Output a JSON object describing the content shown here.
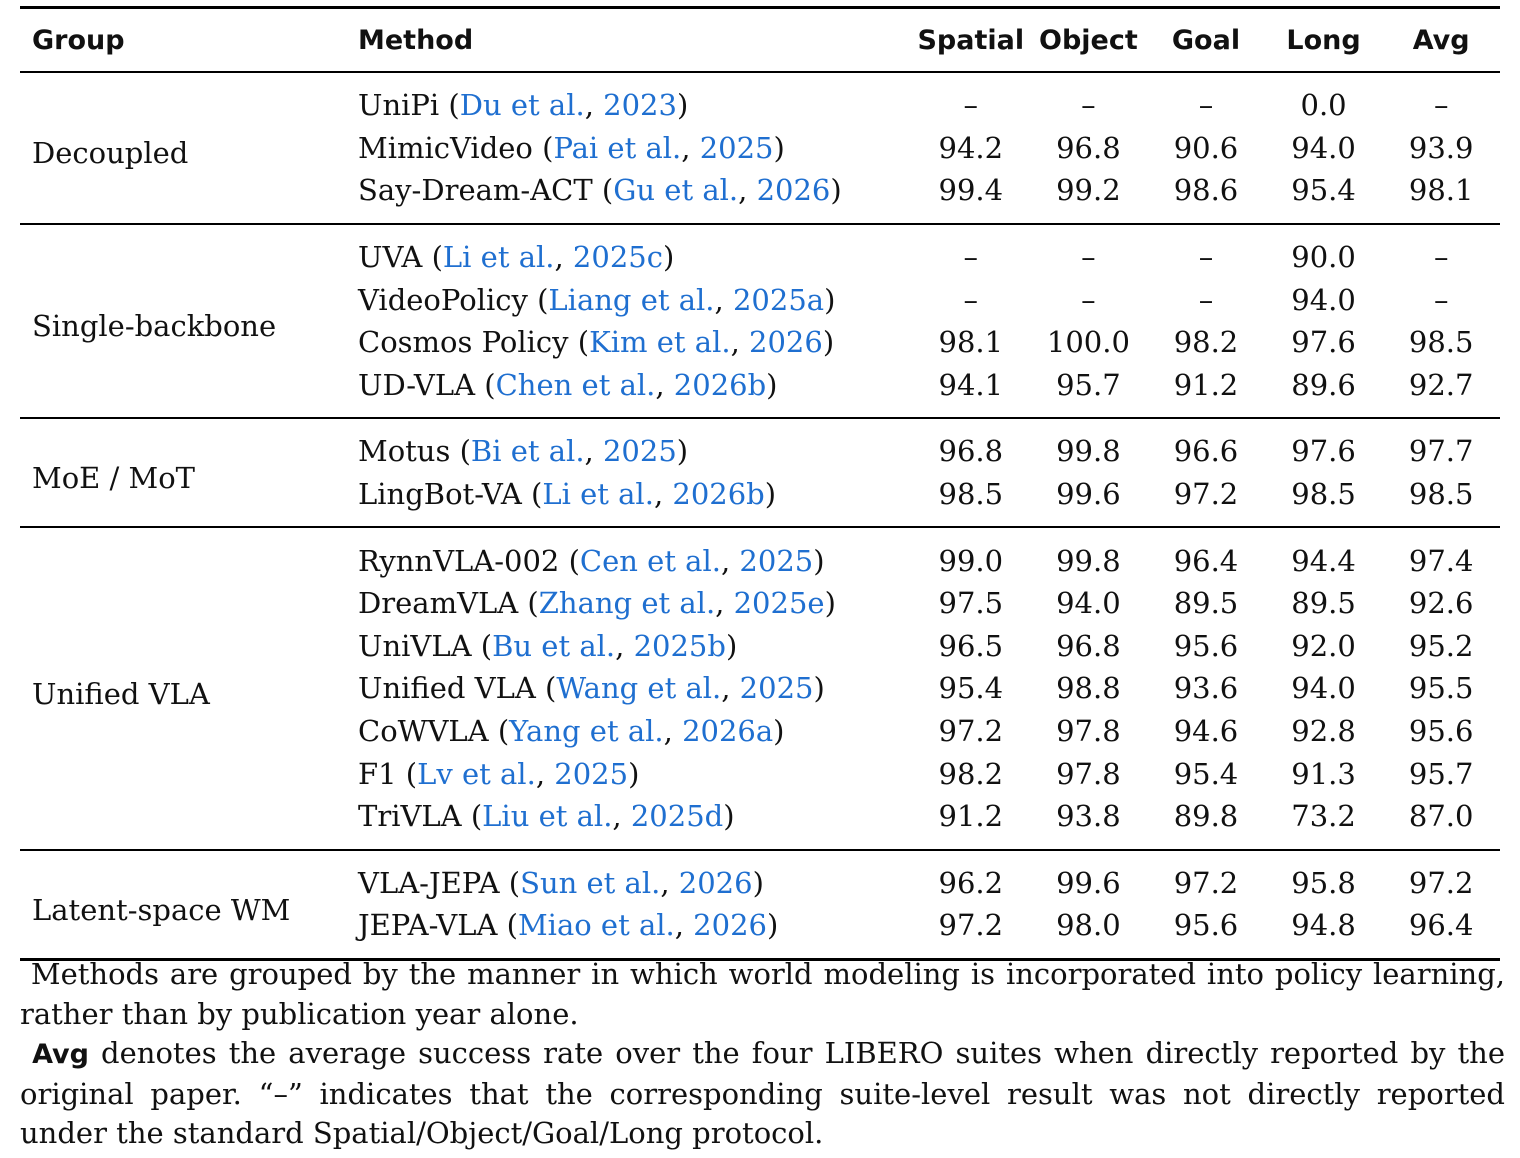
{
  "headers": {
    "group": "Group",
    "method": "Method",
    "spatial": "Spatial",
    "object": "Object",
    "goal": "Goal",
    "long": "Long",
    "avg": "Avg"
  },
  "groups": [
    {
      "name": "Decoupled",
      "rows": [
        {
          "method": "UniPi",
          "cite_author": "Du et al.",
          "cite_year": "2023",
          "spatial": "–",
          "object": "–",
          "goal": "–",
          "long": "0.0",
          "avg": "–"
        },
        {
          "method": "MimicVideo",
          "cite_author": "Pai et al.",
          "cite_year": "2025",
          "spatial": "94.2",
          "object": "96.8",
          "goal": "90.6",
          "long": "94.0",
          "avg": "93.9"
        },
        {
          "method": "Say-Dream-ACT",
          "cite_author": "Gu et al.",
          "cite_year": "2026",
          "spatial": "99.4",
          "object": "99.2",
          "goal": "98.6",
          "long": "95.4",
          "avg": "98.1"
        }
      ]
    },
    {
      "name": "Single-backbone",
      "rows": [
        {
          "method": "UVA",
          "cite_author": "Li et al.",
          "cite_year": "2025c",
          "spatial": "–",
          "object": "–",
          "goal": "–",
          "long": "90.0",
          "avg": "–"
        },
        {
          "method": "VideoPolicy",
          "cite_author": "Liang et al.",
          "cite_year": "2025a",
          "spatial": "–",
          "object": "–",
          "goal": "–",
          "long": "94.0",
          "avg": "–"
        },
        {
          "method": "Cosmos Policy",
          "cite_author": "Kim et al.",
          "cite_year": "2026",
          "spatial": "98.1",
          "object": "100.0",
          "goal": "98.2",
          "long": "97.6",
          "avg": "98.5"
        },
        {
          "method": "UD-VLA",
          "cite_author": "Chen et al.",
          "cite_year": "2026b",
          "spatial": "94.1",
          "object": "95.7",
          "goal": "91.2",
          "long": "89.6",
          "avg": "92.7"
        }
      ]
    },
    {
      "name": "MoE / MoT",
      "rows": [
        {
          "method": "Motus",
          "cite_author": "Bi et al.",
          "cite_year": "2025",
          "spatial": "96.8",
          "object": "99.8",
          "goal": "96.6",
          "long": "97.6",
          "avg": "97.7"
        },
        {
          "method": "LingBot-VA",
          "cite_author": "Li et al.",
          "cite_year": "2026b",
          "spatial": "98.5",
          "object": "99.6",
          "goal": "97.2",
          "long": "98.5",
          "avg": "98.5"
        }
      ]
    },
    {
      "name": "Unified VLA",
      "rows": [
        {
          "method": "RynnVLA-002",
          "cite_author": "Cen et al.",
          "cite_year": "2025",
          "spatial": "99.0",
          "object": "99.8",
          "goal": "96.4",
          "long": "94.4",
          "avg": "97.4"
        },
        {
          "method": "DreamVLA",
          "cite_author": "Zhang et al.",
          "cite_year": "2025e",
          "spatial": "97.5",
          "object": "94.0",
          "goal": "89.5",
          "long": "89.5",
          "avg": "92.6"
        },
        {
          "method": "UniVLA",
          "cite_author": "Bu et al.",
          "cite_year": "2025b",
          "spatial": "96.5",
          "object": "96.8",
          "goal": "95.6",
          "long": "92.0",
          "avg": "95.2"
        },
        {
          "method": "Unified VLA",
          "cite_author": "Wang et al.",
          "cite_year": "2025",
          "spatial": "95.4",
          "object": "98.8",
          "goal": "93.6",
          "long": "94.0",
          "avg": "95.5"
        },
        {
          "method": "CoWVLA",
          "cite_author": "Yang et al.",
          "cite_year": "2026a",
          "spatial": "97.2",
          "object": "97.8",
          "goal": "94.6",
          "long": "92.8",
          "avg": "95.6"
        },
        {
          "method": "F1",
          "cite_author": "Lv et al.",
          "cite_year": "2025",
          "spatial": "98.2",
          "object": "97.8",
          "goal": "95.4",
          "long": "91.3",
          "avg": "95.7"
        },
        {
          "method": "TriVLA",
          "cite_author": "Liu et al.",
          "cite_year": "2025d",
          "spatial": "91.2",
          "object": "93.8",
          "goal": "89.8",
          "long": "73.2",
          "avg": "87.0"
        }
      ]
    },
    {
      "name": "Latent-space WM",
      "rows": [
        {
          "method": "VLA-JEPA",
          "cite_author": "Sun et al.",
          "cite_year": "2026",
          "spatial": "96.2",
          "object": "99.6",
          "goal": "97.2",
          "long": "95.8",
          "avg": "97.2"
        },
        {
          "method": "JEPA-VLA",
          "cite_author": "Miao et al.",
          "cite_year": "2026",
          "spatial": "97.2",
          "object": "98.0",
          "goal": "95.6",
          "long": "94.8",
          "avg": "96.4"
        }
      ]
    }
  ],
  "notes": {
    "note1": "Methods are grouped by the manner in which world modeling is incorporated into policy learning, rather than by publication year alone.",
    "note2_bold": "Avg",
    "note2_rest": " denotes the average success rate over the four LIBERO suites when directly reported by the original paper. “–” indicates that the corresponding suite-level result was not directly reported under the standard Spatial/Object/Goal/Long protocol."
  }
}
